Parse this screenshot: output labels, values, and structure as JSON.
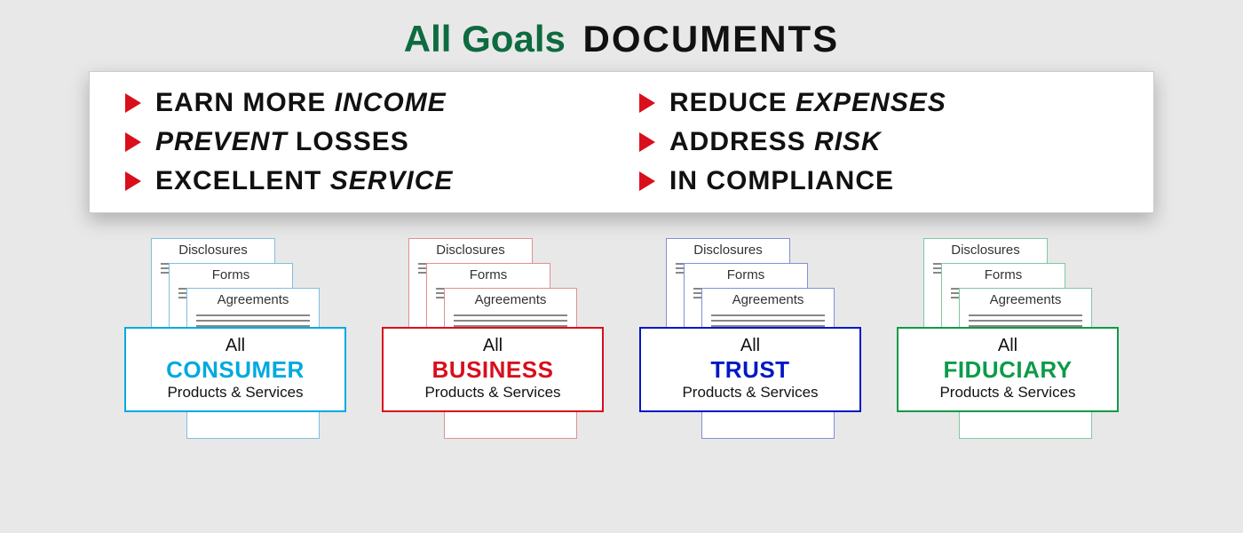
{
  "title": {
    "green": "All Goals",
    "black": "DOCUMENTS"
  },
  "bullet_color": "#d90f1c",
  "goals_left": [
    {
      "html": "EARN MORE <em>INCOME</em>"
    },
    {
      "html": "<em>PREVENT</em> LOSSES"
    },
    {
      "html": "EXCELLENT <em>SERVICE</em>"
    }
  ],
  "goals_right": [
    {
      "html": "REDUCE <em>EXPENSES</em>"
    },
    {
      "html": "ADDRESS <em>RISK</em>"
    },
    {
      "html": "IN COMPLIANCE"
    }
  ],
  "doc_labels": {
    "d1": "Disclosures",
    "d2": "Forms",
    "d3": "Agreements"
  },
  "cards": [
    {
      "name": "CONSUMER",
      "color": "#00a9e0",
      "doc_border": "#7fbfe0"
    },
    {
      "name": "BUSINESS",
      "color": "#d90f1c",
      "doc_border": "#e09090"
    },
    {
      "name": "TRUST",
      "color": "#0018c4",
      "doc_border": "#8090d8"
    },
    {
      "name": "FIDUCIARY",
      "color": "#0d9b4a",
      "doc_border": "#7fc9a0"
    }
  ],
  "card_text": {
    "top": "All",
    "bottom": "Products & Services"
  }
}
